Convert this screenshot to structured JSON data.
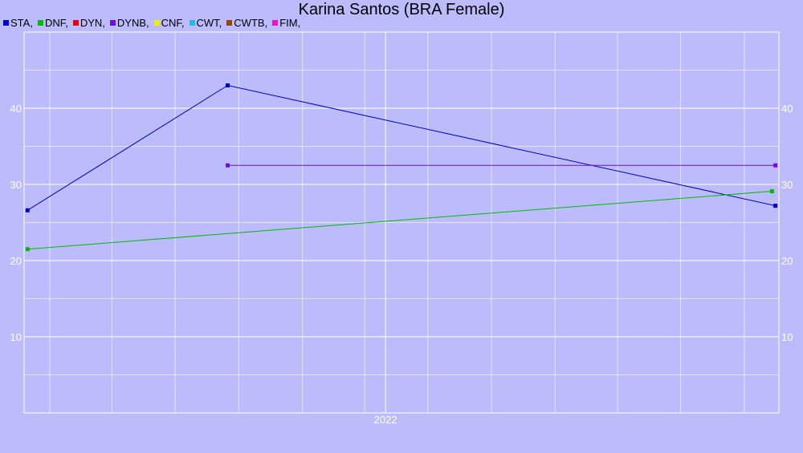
{
  "chart_data": {
    "type": "line",
    "title": "Karina Santos (BRA Female)",
    "legend": [
      {
        "name": "STA",
        "color": "#0000cc",
        "suffix": ","
      },
      {
        "name": "DNF",
        "color": "#00bb00",
        "suffix": ","
      },
      {
        "name": "DYN",
        "color": "#ee0000",
        "suffix": ","
      },
      {
        "name": "DYNB",
        "color": "#6a0fd9",
        "suffix": ","
      },
      {
        "name": "CNF",
        "color": "#eeee00",
        "suffix": ","
      },
      {
        "name": "CWT",
        "color": "#22bbdd",
        "suffix": ","
      },
      {
        "name": "CWTB",
        "color": "#994400",
        "suffix": ","
      },
      {
        "name": "FIM",
        "color": "#ee11cc",
        "suffix": ","
      }
    ],
    "x_axis": {
      "type": "date",
      "range": [
        "2020-11-25",
        "2023-11-20"
      ],
      "tick_labels": [
        {
          "value": "2022-05-01",
          "label": "2022"
        }
      ]
    },
    "y_axis": {
      "range": [
        0,
        50
      ],
      "tick_labels": [
        10,
        20,
        30,
        40
      ],
      "labels_both_sides": true
    },
    "grid": true,
    "series": [
      {
        "name": "STA",
        "color": "#0000cc",
        "points": [
          {
            "x": "2020-11-30",
            "y": 26.6
          },
          {
            "x": "2021-09-15",
            "y": 43.0
          },
          {
            "x": "2023-11-15",
            "y": 27.2
          }
        ]
      },
      {
        "name": "DNF",
        "color": "#00bb00",
        "points": [
          {
            "x": "2020-11-30",
            "y": 21.5
          },
          {
            "x": "2023-11-10",
            "y": 29.1
          }
        ]
      },
      {
        "name": "DYNB",
        "color": "#6a0fd9",
        "points": [
          {
            "x": "2021-09-15",
            "y": 32.5
          },
          {
            "x": "2023-11-15",
            "y": 32.5
          }
        ]
      }
    ]
  }
}
